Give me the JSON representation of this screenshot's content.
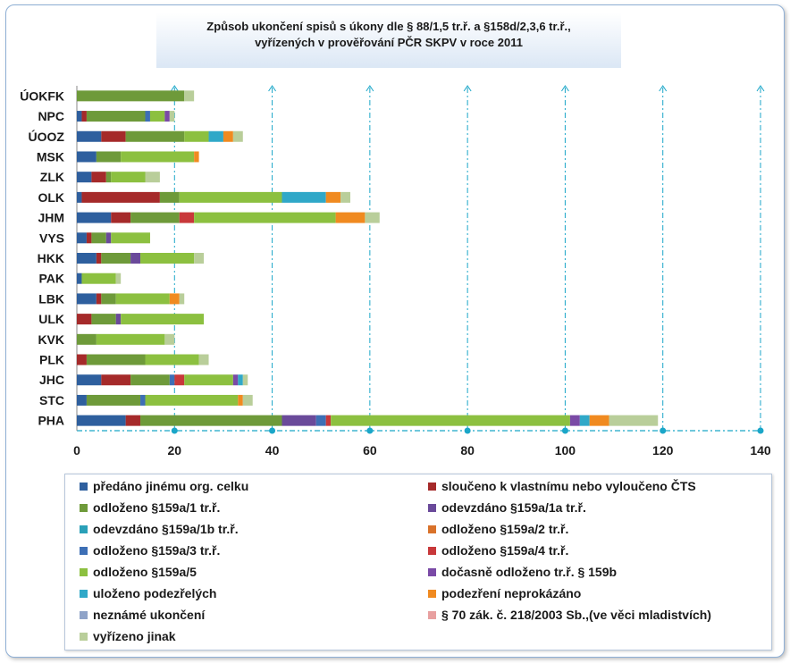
{
  "chart_data": {
    "type": "bar",
    "orientation": "horizontal",
    "stacked": true,
    "title": "Způsob ukončení spisů s úkony dle § 88/1,5 tr.ř. a §158d/2,3,6 tr.ř.,",
    "subtitle": "vyřízených v prověřování PČR SKPV v roce 2011",
    "categories": [
      "ÚOKFK",
      "NPC",
      "ÚOOZ",
      "MSK",
      "ZLK",
      "OLK",
      "JHM",
      "VYS",
      "HKK",
      "PAK",
      "LBK",
      "ULK",
      "KVK",
      "PLK",
      "JHC",
      "STC",
      "PHA"
    ],
    "xlim": [
      0,
      140
    ],
    "xticks": [
      0,
      20,
      40,
      60,
      80,
      100,
      120,
      140
    ],
    "legend_position": "bottom",
    "series": [
      {
        "name": "předáno jinému org. celku",
        "color": "#2e5f9e",
        "values": [
          0,
          1,
          5,
          4,
          3,
          1,
          7,
          2,
          4,
          1,
          4,
          0,
          0,
          0,
          5,
          2,
          10
        ]
      },
      {
        "name": "sloučeno k vlastnímu nebo vyloučeno  ČTS",
        "color": "#a52a2a",
        "values": [
          0,
          1,
          5,
          0,
          3,
          16,
          4,
          1,
          1,
          0,
          1,
          3,
          0,
          2,
          6,
          0,
          3
        ]
      },
      {
        "name": "odloženo §159a/1 tr.ř.",
        "color": "#6e9a3a",
        "values": [
          22,
          12,
          12,
          5,
          1,
          4,
          10,
          3,
          6,
          0,
          3,
          5,
          4,
          12,
          8,
          11,
          29
        ]
      },
      {
        "name": "odevzdáno §159a/1a tr.ř.",
        "color": "#6a4a9a",
        "values": [
          0,
          0,
          0,
          0,
          0,
          0,
          0,
          1,
          2,
          0,
          0,
          1,
          0,
          0,
          0,
          0,
          7
        ]
      },
      {
        "name": "odevzdáno §159a/1b tr.ř.",
        "color": "#2aa0b8",
        "values": [
          0,
          0,
          0,
          0,
          0,
          0,
          0,
          0,
          0,
          0,
          0,
          0,
          0,
          0,
          0,
          0,
          0
        ]
      },
      {
        "name": "odloženo §159a/2 tr.ř.",
        "color": "#d9722a",
        "values": [
          0,
          0,
          0,
          0,
          0,
          0,
          0,
          0,
          0,
          0,
          0,
          0,
          0,
          0,
          0,
          0,
          0
        ]
      },
      {
        "name": "odloženo §159a/3 tr.ř.",
        "color": "#3d6fb5",
        "values": [
          0,
          1,
          0,
          0,
          0,
          0,
          0,
          0,
          0,
          0,
          0,
          0,
          0,
          0,
          1,
          1,
          2
        ]
      },
      {
        "name": "odloženo §159a/4 tr.ř.",
        "color": "#c8383a",
        "values": [
          0,
          0,
          0,
          0,
          0,
          0,
          3,
          0,
          0,
          0,
          0,
          0,
          0,
          0,
          2,
          0,
          1
        ]
      },
      {
        "name": "odloženo §159a/5",
        "color": "#8cc040",
        "values": [
          0,
          3,
          5,
          15,
          7,
          21,
          29,
          8,
          11,
          7,
          11,
          17,
          14,
          11,
          10,
          19,
          49
        ]
      },
      {
        "name": "dočasně odloženo tr.ř. § 159b",
        "color": "#7a4aa6",
        "values": [
          0,
          1,
          0,
          0,
          0,
          0,
          0,
          0,
          0,
          0,
          0,
          0,
          0,
          0,
          1,
          0,
          2
        ]
      },
      {
        "name": "uloženo podezřelých",
        "color": "#30a8c8",
        "values": [
          0,
          0,
          3,
          0,
          0,
          9,
          0,
          0,
          0,
          0,
          0,
          0,
          0,
          0,
          1,
          0,
          2
        ]
      },
      {
        "name": "podezření neprokázáno",
        "color": "#f08a20",
        "values": [
          0,
          0,
          2,
          1,
          0,
          3,
          6,
          0,
          0,
          0,
          2,
          0,
          0,
          0,
          0,
          1,
          4
        ]
      },
      {
        "name": "neznámé ukončení",
        "color": "#8fa3c8",
        "values": [
          0,
          0,
          0,
          0,
          0,
          0,
          0,
          0,
          0,
          0,
          0,
          0,
          0,
          0,
          0,
          0,
          0
        ]
      },
      {
        "name": "§ 70 zák. č. 218/2003 Sb.,(ve věci mladistvích)",
        "color": "#e8a0a0",
        "values": [
          0,
          0,
          0,
          0,
          0,
          0,
          0,
          0,
          0,
          0,
          0,
          0,
          0,
          0,
          0,
          0,
          0
        ]
      },
      {
        "name": "vyřízeno jinak",
        "color": "#b9ce9a",
        "values": [
          2,
          1,
          2,
          0,
          3,
          2,
          3,
          0,
          2,
          1,
          1,
          0,
          2,
          2,
          1,
          2,
          10
        ]
      }
    ]
  }
}
